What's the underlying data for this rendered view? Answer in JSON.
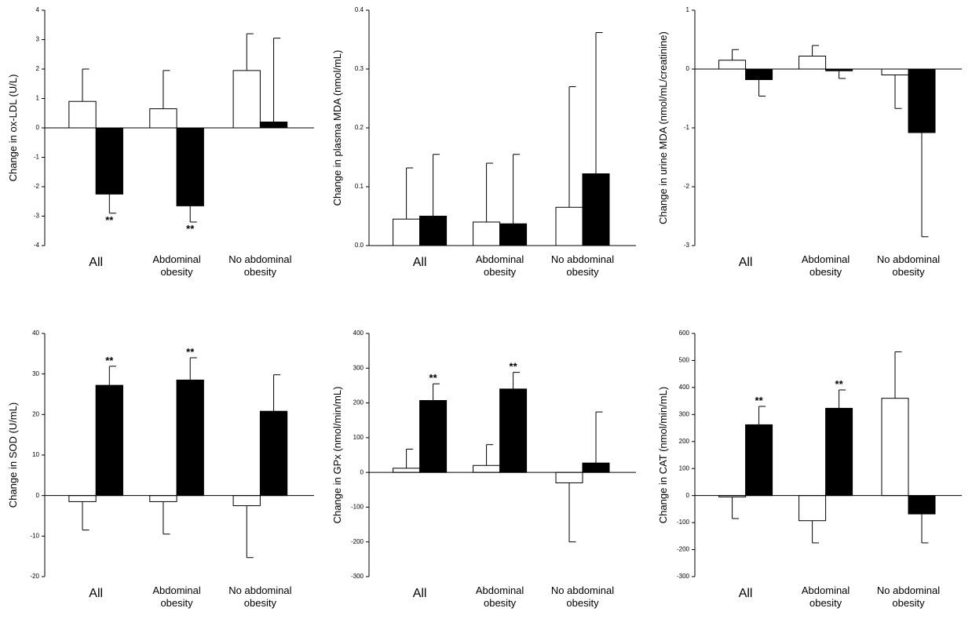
{
  "chart_data": [
    {
      "type": "bar",
      "ylabel": "Change in ox-LDL (U/L)",
      "categories": [
        "All",
        "Abdominal obesity",
        "No abdominal obesity"
      ],
      "ylim": [
        -4,
        4
      ],
      "yticks": [
        -4,
        -3,
        -2,
        -1,
        0,
        1,
        2,
        3,
        4
      ],
      "series": [
        {
          "color": "#ffffff",
          "values": [
            0.9,
            0.65,
            1.95
          ],
          "errors": [
            1.1,
            1.3,
            1.25
          ]
        },
        {
          "color": "#000000",
          "values": [
            -2.25,
            -2.65,
            0.2
          ],
          "errors": [
            0.65,
            0.55,
            2.85
          ],
          "significance": [
            "**",
            "**",
            null
          ]
        }
      ]
    },
    {
      "type": "bar",
      "ylabel": "Change in plasma MDA (nmol/mL)",
      "categories": [
        "All",
        "Abdominal obesity",
        "No abdominal obesity"
      ],
      "ylim": [
        0,
        0.4
      ],
      "yticks": [
        {
          "value": 0,
          "label": "0.0"
        },
        0.1,
        0.2,
        0.3,
        0.4
      ],
      "series": [
        {
          "color": "#ffffff",
          "values": [
            0.045,
            0.04,
            0.065
          ],
          "errors": [
            0.087,
            0.1,
            0.205
          ]
        },
        {
          "color": "#000000",
          "values": [
            0.05,
            0.037,
            0.122
          ],
          "errors": [
            0.105,
            0.118,
            0.24
          ]
        }
      ]
    },
    {
      "type": "bar",
      "ylabel": "Change in urine MDA (nmol/mL/creatinine)",
      "categories": [
        "All",
        "Abdominal obesity",
        "No abdominal obesity"
      ],
      "ylim": [
        -3,
        1
      ],
      "yticks": [
        -3,
        -2,
        -1,
        0,
        1
      ],
      "series": [
        {
          "color": "#ffffff",
          "values": [
            0.15,
            0.22,
            -0.1
          ],
          "errors": [
            0.18,
            0.18,
            0.57
          ]
        },
        {
          "color": "#000000",
          "values": [
            -0.18,
            -0.03,
            -1.08
          ],
          "errors": [
            0.28,
            0.13,
            1.77
          ]
        }
      ]
    },
    {
      "type": "bar",
      "ylabel": "Change in SOD (U/mL)",
      "categories": [
        "All",
        "Abdominal obesity",
        "No abdominal obesity"
      ],
      "ylim": [
        -20,
        40
      ],
      "yticks": [
        -20,
        -10,
        0,
        10,
        20,
        30,
        40
      ],
      "series": [
        {
          "color": "#ffffff",
          "values": [
            -1.5,
            -1.5,
            -2.5
          ],
          "errors": [
            7,
            8,
            12.8
          ]
        },
        {
          "color": "#000000",
          "values": [
            27.2,
            28.5,
            20.8
          ],
          "errors": [
            4.7,
            5.5,
            9
          ],
          "significance": [
            "**",
            "**",
            null
          ]
        }
      ]
    },
    {
      "type": "bar",
      "ylabel": "Change in GPx (nmol/min/mL)",
      "categories": [
        "All",
        "Abdominal obesity",
        "No abdominal obesity"
      ],
      "ylim": [
        -300,
        400
      ],
      "yticks": [
        -300,
        -200,
        -100,
        0,
        100,
        200,
        300,
        400
      ],
      "series": [
        {
          "color": "#ffffff",
          "values": [
            12,
            20,
            -30
          ],
          "errors": [
            55,
            60,
            170
          ]
        },
        {
          "color": "#000000",
          "values": [
            207,
            240,
            27
          ],
          "errors": [
            48,
            48,
            147
          ],
          "significance": [
            "**",
            "**",
            null
          ]
        }
      ]
    },
    {
      "type": "bar",
      "ylabel": "Change in CAT (nmol/min/mL)",
      "categories": [
        "All",
        "Abdominal obesity",
        "No abdominal obesity"
      ],
      "ylim": [
        -300,
        600
      ],
      "yticks": [
        -300,
        -200,
        -100,
        0,
        100,
        200,
        300,
        400,
        500,
        600
      ],
      "series": [
        {
          "color": "#ffffff",
          "values": [
            -5,
            -93,
            360
          ],
          "errors": [
            80,
            82,
            172
          ]
        },
        {
          "color": "#000000",
          "values": [
            262,
            323,
            -68
          ],
          "errors": [
            68,
            68,
            107
          ],
          "significance": [
            "**",
            "**",
            null
          ]
        }
      ]
    }
  ]
}
